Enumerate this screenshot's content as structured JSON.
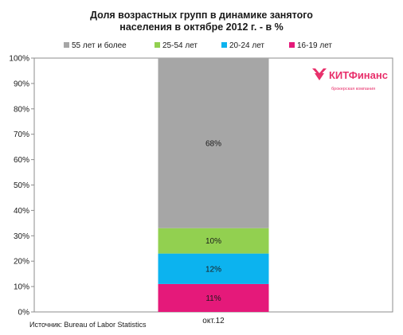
{
  "chart_data": {
    "type": "bar",
    "stacked": true,
    "title": [
      "Доля возрастных  групп  в динамике занятого",
      "населения в октябре  2012 г. - в %"
    ],
    "categories": [
      "окт.12"
    ],
    "series": [
      {
        "name": "16-19 лет",
        "values": [
          11
        ],
        "label": "11%",
        "color": "#e5197a"
      },
      {
        "name": "20-24 лет",
        "values": [
          12
        ],
        "label": "12%",
        "color": "#0cb3ef"
      },
      {
        "name": "25-54 лет",
        "values": [
          10
        ],
        "label": "10%",
        "color": "#92d050"
      },
      {
        "name": "55 лет и более",
        "values": [
          68
        ],
        "label": "68%",
        "color": "#a6a6a6"
      }
    ],
    "ylim": [
      0,
      100
    ],
    "yticks": [
      "0%",
      "10%",
      "20%",
      "30%",
      "40%",
      "50%",
      "60%",
      "70%",
      "80%",
      "90%",
      "100%"
    ],
    "legend_order": [
      "55 лет и более",
      "25-54 лет",
      "20-24 лет",
      "16-19 лет"
    ],
    "legend_position": "top",
    "grid": false
  },
  "source_text": "Источник: Bureau of Labor Statistics",
  "logo": {
    "name": "КИТФинанс",
    "subtitle": "брокерская компания",
    "color": "#e8306b",
    "icon": "bird-logo-icon"
  }
}
